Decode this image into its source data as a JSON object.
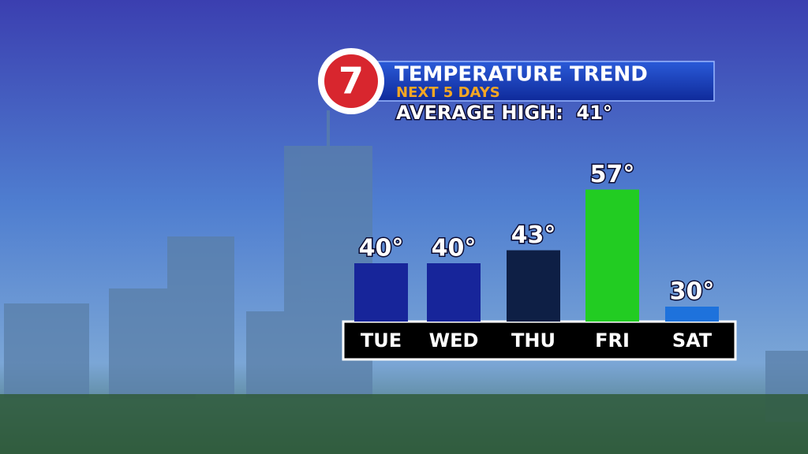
{
  "logo": "7",
  "chart_data": {
    "type": "bar",
    "title": "TEMPERATURE TREND",
    "subtitle": "NEXT 5 DAYS",
    "annotation": "AVERAGE HIGH:  41°",
    "categories": [
      "TUE",
      "WED",
      "THU",
      "FRI",
      "SAT"
    ],
    "series": [
      {
        "colors": [
          "#17259a",
          "#17259a",
          "#0e1f45",
          "#22cc22",
          "#1e72dc"
        ],
        "values": [
          40,
          40,
          43,
          57,
          30
        ],
        "value_labels": [
          "40°",
          "40°",
          "43°",
          "57°",
          "30°"
        ]
      }
    ]
  }
}
